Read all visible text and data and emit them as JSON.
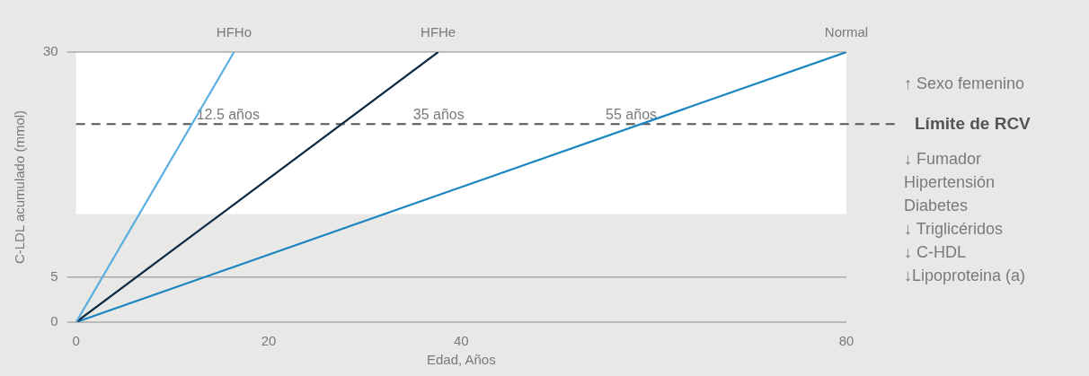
{
  "chart_data": {
    "type": "line",
    "xlabel": "Edad, Años",
    "ylabel": "C-LDL acumulado (mmol)",
    "xlim": [
      0,
      80
    ],
    "xticks": [
      0,
      20,
      40,
      80
    ],
    "ylim": [
      0,
      30
    ],
    "yticks": [
      0,
      5,
      30
    ],
    "grid": "y",
    "marker": "none",
    "line_style": "solid",
    "legend": false,
    "series": [
      {
        "name": "HFHo",
        "color": "#5aaee0",
        "x": [
          0,
          16.4
        ],
        "values": [
          0,
          30
        ]
      },
      {
        "name": "HFHe",
        "color": "#0d2b45",
        "x": [
          0,
          37.6
        ],
        "values": [
          0,
          30
        ]
      },
      {
        "name": "Normal",
        "color": "#1a86c0",
        "x": [
          0,
          80
        ],
        "values": [
          0,
          30
        ]
      }
    ],
    "ref_lines": [
      {
        "axis": "y",
        "value": 22,
        "label": "Límite de RCV",
        "color": "#555555",
        "line_style": "dashed"
      }
    ],
    "bands": [
      {
        "axis": "y",
        "from": 12,
        "to": 30,
        "color": "#ffffff"
      }
    ],
    "annotations": [
      {
        "text": "12.5 años",
        "x": 12.5,
        "y": 22
      },
      {
        "text": "35 años",
        "x": 35,
        "y": 22
      },
      {
        "text": "55 años",
        "x": 55,
        "y": 22
      },
      "↑ Sexo femenino",
      "↓ Fumador",
      "Hipertensión",
      "Diabetes",
      "↓ Triglicéridos",
      "↓ C-HDL",
      "↓Lipoproteina (a)"
    ]
  }
}
